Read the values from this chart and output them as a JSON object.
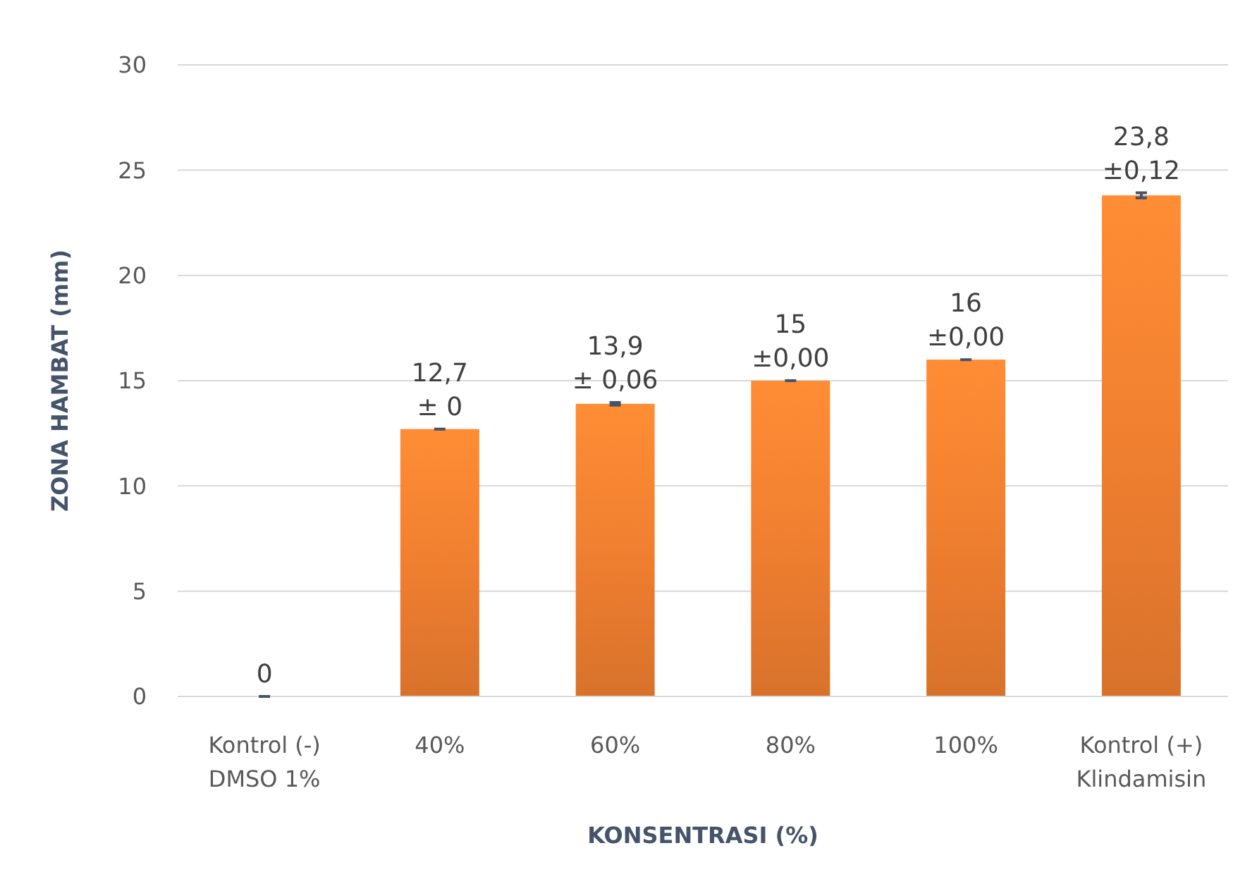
{
  "chart_data": {
    "type": "bar",
    "xlabel": "KONSENTRASI (%)",
    "ylabel": "ZONA HAMBAT (mm)",
    "categories": [
      "Kontrol (-)\nDMSO 1%",
      "40%",
      "60%",
      "80%",
      "100%",
      "Kontrol (+)\nKlindamisin"
    ],
    "values": [
      0,
      12.7,
      13.9,
      15,
      16,
      23.8
    ],
    "errors": [
      0,
      0,
      0.06,
      0,
      0,
      0.12
    ],
    "value_labels": [
      "0",
      "12,7\n± 0",
      "13,9\n± 0,06",
      "15\n±0,00",
      "16\n±0,00",
      "23,8\n±0,12"
    ],
    "color": "#f07f30",
    "ylim": [
      0,
      30
    ],
    "yticks": [
      0,
      5,
      10,
      15,
      20,
      25,
      30
    ],
    "grid": "y"
  }
}
